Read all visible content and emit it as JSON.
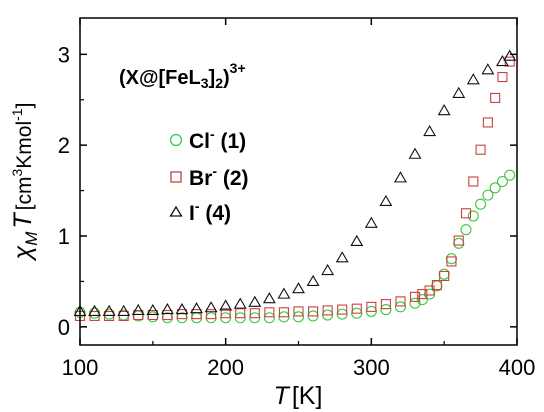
{
  "chart_data": {
    "type": "scatter",
    "xlim": [
      100,
      400
    ],
    "ylim": [
      -0.2,
      3.4
    ],
    "x_ticks": [
      100,
      200,
      300,
      400
    ],
    "y_ticks": [
      0,
      1,
      2,
      3
    ],
    "xlabel_symbol": "T",
    "xlabel_unit": "[K]",
    "ylabel_symbol": "χ",
    "ylabel_sub": "M",
    "ylabel_symbol2": "T",
    "ylabel_unit_prefix": "[cm",
    "ylabel_unit_sup1": "3",
    "ylabel_unit_mid": "Kmol",
    "ylabel_unit_sup2": "-1",
    "ylabel_unit_suffix": "]",
    "annotation": {
      "prefix": "(X@[FeL",
      "sub1": "3",
      "mid": "]",
      "sub2": "2",
      "suffix": ")",
      "sup": "3+"
    },
    "legend_position": "left-center",
    "series": [
      {
        "name": "Cl",
        "ion_sup": "-",
        "id": " (1)",
        "marker": "circle",
        "color": "#3cc83c",
        "x": [
          100,
          110,
          120,
          130,
          140,
          150,
          160,
          170,
          180,
          190,
          200,
          210,
          220,
          230,
          240,
          250,
          260,
          270,
          280,
          290,
          300,
          310,
          320,
          330,
          335,
          340,
          345,
          350,
          355,
          360,
          365,
          370,
          375,
          380,
          385,
          390,
          395
        ],
        "y": [
          0.16,
          0.15,
          0.14,
          0.13,
          0.12,
          0.11,
          0.1,
          0.1,
          0.1,
          0.1,
          0.1,
          0.1,
          0.1,
          0.1,
          0.11,
          0.11,
          0.12,
          0.13,
          0.14,
          0.15,
          0.17,
          0.19,
          0.22,
          0.26,
          0.3,
          0.36,
          0.45,
          0.58,
          0.75,
          0.92,
          1.07,
          1.22,
          1.35,
          1.45,
          1.53,
          1.6,
          1.67
        ]
      },
      {
        "name": "Br",
        "ion_sup": "-",
        "id": " (2)",
        "marker": "square",
        "color": "#c84040",
        "x": [
          100,
          110,
          120,
          130,
          140,
          150,
          160,
          170,
          180,
          190,
          200,
          210,
          220,
          230,
          240,
          250,
          260,
          270,
          280,
          290,
          300,
          310,
          320,
          330,
          335,
          340,
          345,
          350,
          355,
          360,
          365,
          370,
          375,
          380,
          385,
          390,
          395
        ],
        "y": [
          0.12,
          0.12,
          0.12,
          0.12,
          0.13,
          0.13,
          0.13,
          0.14,
          0.14,
          0.14,
          0.15,
          0.15,
          0.15,
          0.16,
          0.16,
          0.17,
          0.17,
          0.18,
          0.19,
          0.2,
          0.22,
          0.25,
          0.28,
          0.33,
          0.36,
          0.4,
          0.46,
          0.56,
          0.72,
          0.95,
          1.25,
          1.6,
          1.95,
          2.25,
          2.52,
          2.75,
          2.92
        ]
      },
      {
        "name": "I",
        "ion_sup": "-",
        "id": " (4)",
        "marker": "triangle",
        "color": "#111111",
        "x": [
          100,
          110,
          120,
          130,
          140,
          150,
          160,
          170,
          180,
          190,
          200,
          210,
          220,
          230,
          240,
          250,
          260,
          270,
          280,
          290,
          300,
          310,
          320,
          330,
          340,
          350,
          360,
          370,
          380,
          390,
          395
        ],
        "y": [
          0.17,
          0.17,
          0.17,
          0.17,
          0.18,
          0.18,
          0.19,
          0.19,
          0.2,
          0.21,
          0.23,
          0.25,
          0.27,
          0.31,
          0.36,
          0.42,
          0.5,
          0.62,
          0.76,
          0.94,
          1.14,
          1.38,
          1.64,
          1.9,
          2.15,
          2.38,
          2.57,
          2.72,
          2.83,
          2.92,
          2.98
        ]
      }
    ]
  }
}
